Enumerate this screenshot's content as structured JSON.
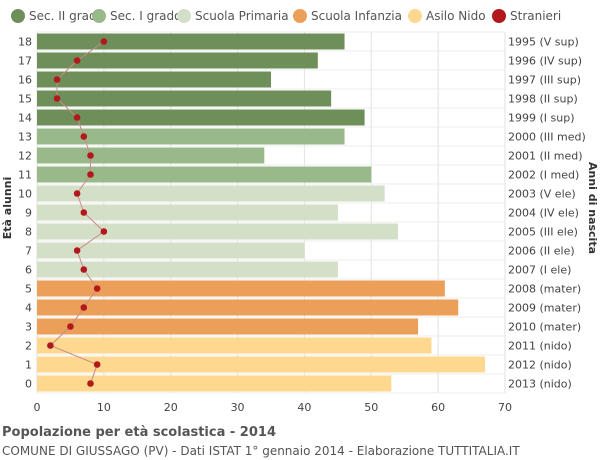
{
  "chart_data": {
    "type": "bar",
    "orientation": "horizontal",
    "title": "Popolazione per età scolastica - 2014",
    "subtitle": "COMUNE DI GIUSSAGO (PV) - Dati ISTAT 1° gennaio 2014 - Elaborazione TUTTITALIA.IT",
    "ylabel_left": "Età alunni",
    "ylabel_right": "Anni di nascita",
    "xlim": [
      0,
      70
    ],
    "x_ticks": [
      0,
      10,
      20,
      30,
      40,
      50,
      60,
      70
    ],
    "grid": true,
    "legend_position": "top",
    "legend": [
      {
        "label": "Sec. II grado",
        "color": "#6e8f5a"
      },
      {
        "label": "Sec. I grado",
        "color": "#9ab98b"
      },
      {
        "label": "Scuola Primaria",
        "color": "#d3e0c7"
      },
      {
        "label": "Scuola Infanzia",
        "color": "#eb9f58"
      },
      {
        "label": "Asilo Nido",
        "color": "#fdd88e"
      },
      {
        "label": "Stranieri",
        "color": "#b3191c"
      }
    ],
    "rows": [
      {
        "age": "18",
        "birth": "1995 (V sup)",
        "value": 46,
        "stranieri": 10,
        "group": 0
      },
      {
        "age": "17",
        "birth": "1996 (IV sup)",
        "value": 42,
        "stranieri": 6,
        "group": 0
      },
      {
        "age": "16",
        "birth": "1997 (III sup)",
        "value": 35,
        "stranieri": 3,
        "group": 0
      },
      {
        "age": "15",
        "birth": "1998 (II sup)",
        "value": 44,
        "stranieri": 3,
        "group": 0
      },
      {
        "age": "14",
        "birth": "1999 (I sup)",
        "value": 49,
        "stranieri": 6,
        "group": 0
      },
      {
        "age": "13",
        "birth": "2000 (III med)",
        "value": 46,
        "stranieri": 7,
        "group": 1
      },
      {
        "age": "12",
        "birth": "2001 (II med)",
        "value": 34,
        "stranieri": 8,
        "group": 1
      },
      {
        "age": "11",
        "birth": "2002 (I med)",
        "value": 50,
        "stranieri": 8,
        "group": 1
      },
      {
        "age": "10",
        "birth": "2003 (V ele)",
        "value": 52,
        "stranieri": 6,
        "group": 2
      },
      {
        "age": "9",
        "birth": "2004 (IV ele)",
        "value": 45,
        "stranieri": 7,
        "group": 2
      },
      {
        "age": "8",
        "birth": "2005 (III ele)",
        "value": 54,
        "stranieri": 10,
        "group": 2
      },
      {
        "age": "7",
        "birth": "2006 (II ele)",
        "value": 40,
        "stranieri": 6,
        "group": 2
      },
      {
        "age": "6",
        "birth": "2007 (I ele)",
        "value": 45,
        "stranieri": 7,
        "group": 2
      },
      {
        "age": "5",
        "birth": "2008 (mater)",
        "value": 61,
        "stranieri": 9,
        "group": 3
      },
      {
        "age": "4",
        "birth": "2009 (mater)",
        "value": 63,
        "stranieri": 7,
        "group": 3
      },
      {
        "age": "3",
        "birth": "2010 (mater)",
        "value": 57,
        "stranieri": 5,
        "group": 3
      },
      {
        "age": "2",
        "birth": "2011 (nido)",
        "value": 59,
        "stranieri": 2,
        "group": 4
      },
      {
        "age": "1",
        "birth": "2012 (nido)",
        "value": 67,
        "stranieri": 9,
        "group": 4
      },
      {
        "age": "0",
        "birth": "2013 (nido)",
        "value": 53,
        "stranieri": 8,
        "group": 4
      }
    ],
    "stranieri_line_color": "#c98a8a"
  }
}
